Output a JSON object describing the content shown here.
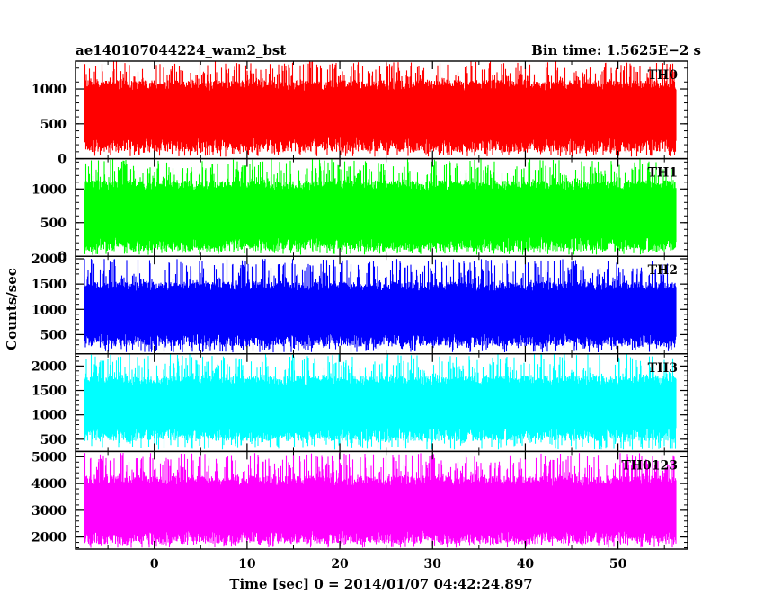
{
  "chart_data": {
    "type": "line",
    "title_left": "ae140107044224_wam2_bst",
    "title_right": "Bin time: 1.5625E−2 s",
    "xlabel": "Time [sec] 0 = 2014/01/07 04:42:24.897",
    "ylabel": "Counts/sec",
    "xlim": [
      -8.5,
      57.5
    ],
    "data_x_range": [
      -7.5,
      56.2
    ],
    "x_ticks": [
      0,
      10,
      20,
      30,
      40,
      50
    ],
    "x_tick_labels": [
      "0",
      "10",
      "20",
      "30",
      "40",
      "50"
    ],
    "grid": false,
    "series": [
      {
        "name": "TH0",
        "color": "#ff0000",
        "ylim": [
          0,
          1400
        ],
        "y_ticks": [
          0,
          500,
          1000
        ],
        "y_tick_labels": [
          "0",
          "500",
          "1000"
        ],
        "base_range": [
          200,
          1050
        ],
        "spike_range": [
          30,
          1400
        ]
      },
      {
        "name": "TH1",
        "color": "#00ff00",
        "ylim": [
          0,
          1450
        ],
        "y_ticks": [
          0,
          500,
          1000
        ],
        "y_tick_labels": [
          "0",
          "500",
          "1000"
        ],
        "base_range": [
          180,
          1050
        ],
        "spike_range": [
          20,
          1450
        ]
      },
      {
        "name": "TH2",
        "color": "#0000ff",
        "ylim": [
          120,
          2050
        ],
        "y_ticks": [
          500,
          1000,
          1500,
          2000
        ],
        "y_tick_labels": [
          "500",
          "1000",
          "1500",
          "2000"
        ],
        "base_range": [
          400,
          1450
        ],
        "spike_range": [
          150,
          2000
        ]
      },
      {
        "name": "TH3",
        "color": "#00ffff",
        "ylim": [
          250,
          2250
        ],
        "y_ticks": [
          500,
          1000,
          1500,
          2000
        ],
        "y_tick_labels": [
          "500",
          "1000",
          "1500",
          "2000"
        ],
        "base_range": [
          600,
          1700
        ],
        "spike_range": [
          280,
          2250
        ]
      },
      {
        "name": "TH0123",
        "color": "#ff00ff",
        "ylim": [
          1550,
          5200
        ],
        "y_ticks": [
          2000,
          3000,
          4000,
          5000
        ],
        "y_tick_labels": [
          "2000",
          "3000",
          "4000",
          "5000"
        ],
        "base_range": [
          2000,
          4100
        ],
        "spike_range": [
          1600,
          5150
        ]
      }
    ]
  }
}
